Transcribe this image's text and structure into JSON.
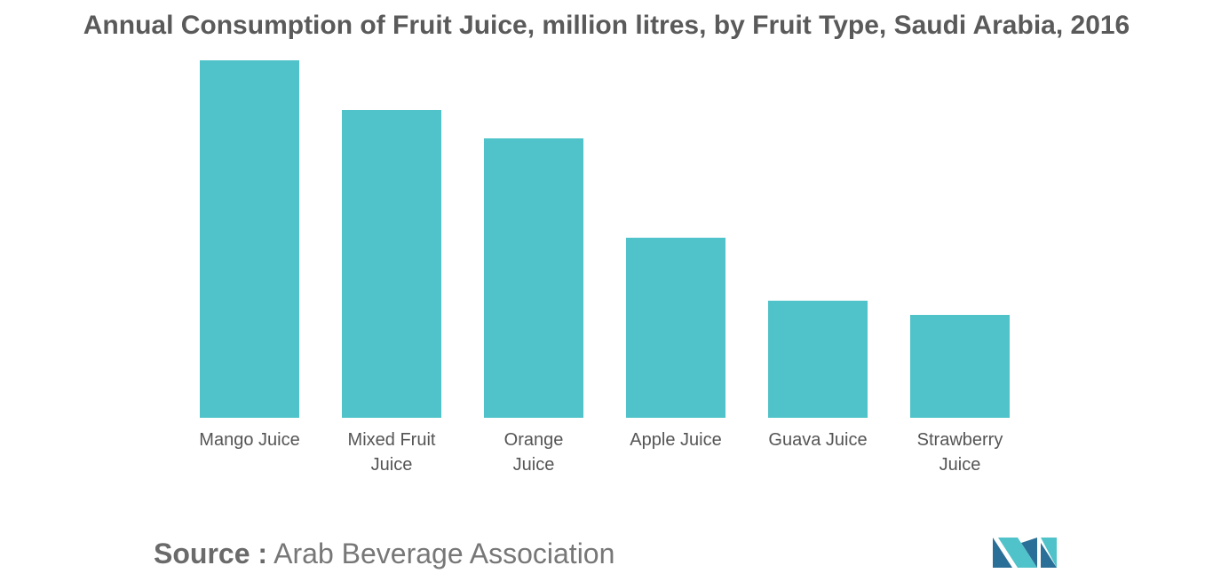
{
  "chart_data": {
    "type": "bar",
    "title": "Annual Consumption of Fruit Juice, million litres, by Fruit Type, Saudi Arabia, 2016",
    "categories": [
      "Mango Juice",
      "Mixed Fruit Juice",
      "Orange Juice",
      "Apple Juice",
      "Guava Juice",
      "Strawberry Juice"
    ],
    "values": [
      403,
      347,
      315,
      203,
      132,
      116
    ],
    "color": "#4fc3c9",
    "source_label": "Source :",
    "source": "Arab Beverage Association"
  }
}
